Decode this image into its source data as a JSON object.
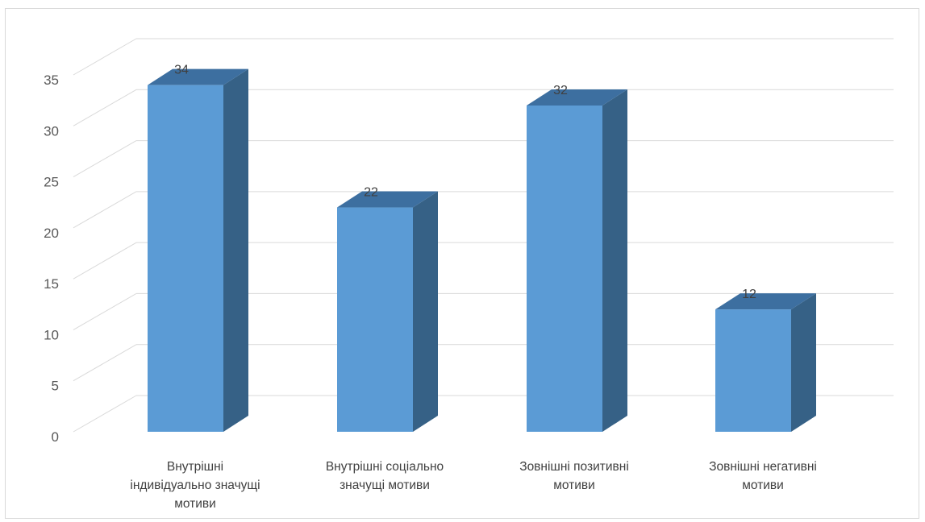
{
  "chart_data": {
    "type": "bar",
    "style": "3d-column",
    "categories": [
      [
        "Внутрішні",
        "індивідуально значущі",
        "мотиви"
      ],
      [
        "Внутрішні соціально",
        "значущі мотиви"
      ],
      [
        "Зовнішні позитивні",
        "мотиви"
      ],
      [
        "Зовнішні негативні",
        "мотиви"
      ]
    ],
    "values": [
      34,
      22,
      32,
      12
    ],
    "data_labels": [
      "34",
      "22",
      "32",
      "12"
    ],
    "yticks": [
      "0",
      "5",
      "10",
      "15",
      "20",
      "25",
      "30",
      "35"
    ],
    "ylim": [
      0,
      35
    ],
    "grid": true,
    "legend": "none",
    "colors": {
      "bar_front": "#5b9bd5",
      "bar_side": "#366186",
      "bar_top": "#3d6fa0",
      "grid": "#d9d9d9",
      "axis_text": "#595959"
    }
  }
}
